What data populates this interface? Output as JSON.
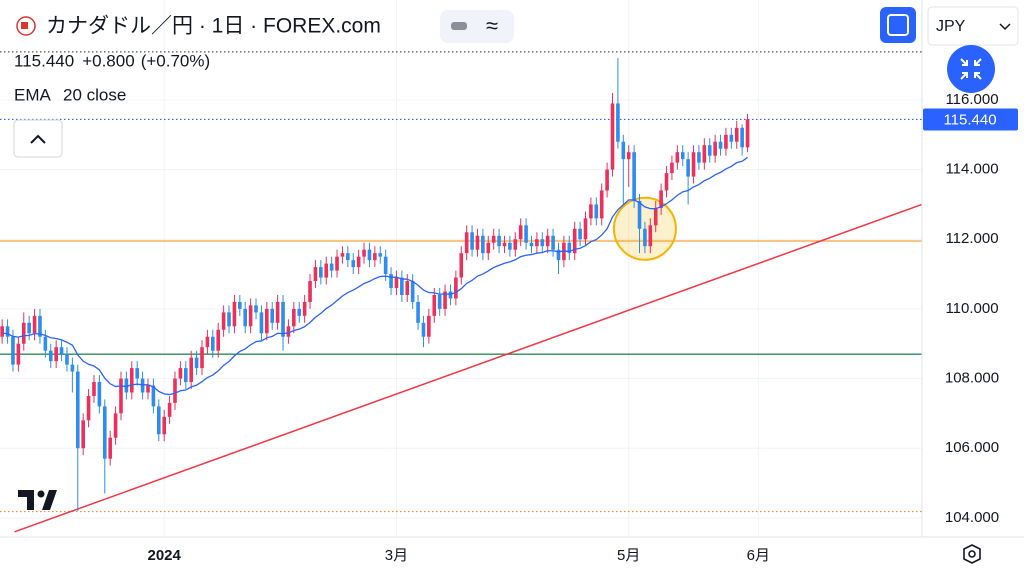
{
  "chart_data": {
    "type": "candlestick",
    "title": "カナダドル／円 · 1日 · FOREX.com",
    "last_price": {
      "value": 115.44,
      "label": "115.440"
    },
    "change": {
      "value": 0.8,
      "label": "+0.800"
    },
    "change_percent": {
      "value": 0.7,
      "label": "(+0.70%)"
    },
    "currency": "JPY",
    "candles": {
      "up_color": "#ec2f5b",
      "down_color": "#2d8cf0",
      "open": [
        109.2,
        109.5,
        109.2,
        108.4,
        109.0,
        109.6,
        109.3,
        109.8,
        109.2,
        108.8,
        108.5,
        108.9,
        108.7,
        108.4,
        108.2,
        106.0,
        106.8,
        107.5,
        107.9,
        107.2,
        105.7,
        106.3,
        107.0,
        108.0,
        107.6,
        108.3,
        108.0,
        107.6,
        107.8,
        107.2,
        106.4,
        106.9,
        107.3,
        108.0,
        108.3,
        107.9,
        108.6,
        108.3,
        108.9,
        109.2,
        108.8,
        109.4,
        109.9,
        109.5,
        110.2,
        110.0,
        109.5,
        110.1,
        109.9,
        109.3,
        110.0,
        109.6,
        110.2,
        109.2,
        109.5,
        110.0,
        109.8,
        110.2,
        110.8,
        111.2,
        110.9,
        111.3,
        111.1,
        111.5,
        111.6,
        111.4,
        111.2,
        111.5,
        111.7,
        111.4,
        111.6,
        111.5,
        111.0,
        110.6,
        110.9,
        110.4,
        110.8,
        110.2,
        109.6,
        109.2,
        109.8,
        110.4,
        110.0,
        110.5,
        110.3,
        110.9,
        111.6,
        112.2,
        111.7,
        112.1,
        111.6,
        111.9,
        112.1,
        111.8,
        111.9,
        111.7,
        112.0,
        112.4,
        111.9,
        111.8,
        112.0,
        111.8,
        112.1,
        111.7,
        111.4,
        111.9,
        111.6,
        112.3,
        112.0,
        112.6,
        113.0,
        112.6,
        113.4,
        114.0,
        115.9,
        114.8,
        114.3,
        114.5,
        113.1,
        112.3,
        111.8,
        112.4,
        112.9,
        113.4,
        113.9,
        114.2,
        114.5,
        114.3,
        113.8,
        114.5,
        114.2,
        114.7,
        114.4,
        114.8,
        114.6,
        115.0,
        114.8,
        115.2,
        114.64
      ],
      "high": [
        109.7,
        109.7,
        109.4,
        109.2,
        109.9,
        109.8,
        110.0,
        110.0,
        109.4,
        109.0,
        109.1,
        109.1,
        108.9,
        108.6,
        108.4,
        107.0,
        107.7,
        108.1,
        108.1,
        107.4,
        106.5,
        107.2,
        108.2,
        108.2,
        108.5,
        108.5,
        108.2,
        108.0,
        108.0,
        107.4,
        107.1,
        107.5,
        108.2,
        108.5,
        108.5,
        108.8,
        108.8,
        109.1,
        109.4,
        109.4,
        109.6,
        110.1,
        110.1,
        110.4,
        110.4,
        110.2,
        110.3,
        110.3,
        110.1,
        110.2,
        110.2,
        110.4,
        110.4,
        109.7,
        110.2,
        110.2,
        110.4,
        111.0,
        111.4,
        111.4,
        111.5,
        111.5,
        111.7,
        111.8,
        111.8,
        111.6,
        111.7,
        111.9,
        111.9,
        111.8,
        111.8,
        111.7,
        111.2,
        111.1,
        111.1,
        111.0,
        111.0,
        110.4,
        109.8,
        110.0,
        110.6,
        110.6,
        110.7,
        110.7,
        111.1,
        111.8,
        112.4,
        112.4,
        112.3,
        112.3,
        112.1,
        112.3,
        112.3,
        112.1,
        112.1,
        112.2,
        112.6,
        112.6,
        112.1,
        112.2,
        112.2,
        112.3,
        112.3,
        111.9,
        112.1,
        112.1,
        112.5,
        112.5,
        112.8,
        113.2,
        113.2,
        113.6,
        114.2,
        116.2,
        117.2,
        115.0,
        114.7,
        114.7,
        113.3,
        112.5,
        112.6,
        113.1,
        113.6,
        114.1,
        114.4,
        114.7,
        114.7,
        114.5,
        114.7,
        114.7,
        114.9,
        114.9,
        115.0,
        115.0,
        115.2,
        115.2,
        115.4,
        115.3,
        115.6
      ],
      "low": [
        109.0,
        109.0,
        108.2,
        108.2,
        108.8,
        109.1,
        109.1,
        109.0,
        108.6,
        108.3,
        108.3,
        108.5,
        108.2,
        107.6,
        104.2,
        105.8,
        106.6,
        107.3,
        107.0,
        104.7,
        105.5,
        106.1,
        106.8,
        107.4,
        107.4,
        107.8,
        107.4,
        107.4,
        107.0,
        106.2,
        106.2,
        106.7,
        107.1,
        107.8,
        107.7,
        107.7,
        108.1,
        108.1,
        108.7,
        108.6,
        108.6,
        109.2,
        109.3,
        109.3,
        109.8,
        109.3,
        109.3,
        109.7,
        109.1,
        109.1,
        109.4,
        109.4,
        108.8,
        109.0,
        109.3,
        109.6,
        109.6,
        110.0,
        110.6,
        110.7,
        110.7,
        110.9,
        110.9,
        111.3,
        111.2,
        111.0,
        111.0,
        111.3,
        111.2,
        111.2,
        111.3,
        110.8,
        110.4,
        110.4,
        110.2,
        110.2,
        110.0,
        109.4,
        108.9,
        109.0,
        109.6,
        109.8,
        109.8,
        110.1,
        110.1,
        110.7,
        111.4,
        111.5,
        111.5,
        111.4,
        111.4,
        111.7,
        111.6,
        111.6,
        111.5,
        111.5,
        111.8,
        111.7,
        111.6,
        111.6,
        111.6,
        111.6,
        111.5,
        111.0,
        111.2,
        111.4,
        111.4,
        111.8,
        111.8,
        112.4,
        112.4,
        112.4,
        113.2,
        113.8,
        114.6,
        113.0,
        113.5,
        112.9,
        111.6,
        111.6,
        111.6,
        112.2,
        112.7,
        113.2,
        113.7,
        114.0,
        114.1,
        113.0,
        113.6,
        114.0,
        114.0,
        114.2,
        114.2,
        114.4,
        114.4,
        114.6,
        114.6,
        114.4,
        114.5
      ],
      "close": [
        109.5,
        109.2,
        108.4,
        109.0,
        109.6,
        109.3,
        109.8,
        109.2,
        108.8,
        108.5,
        108.9,
        108.7,
        108.4,
        108.2,
        106.0,
        106.8,
        107.5,
        107.9,
        107.2,
        105.7,
        106.3,
        107.0,
        108.0,
        107.6,
        108.3,
        108.0,
        107.6,
        107.8,
        107.2,
        106.4,
        106.9,
        107.3,
        108.0,
        108.3,
        107.9,
        108.6,
        108.3,
        108.9,
        109.2,
        108.8,
        109.4,
        109.9,
        109.5,
        110.2,
        110.0,
        109.5,
        110.1,
        109.9,
        109.3,
        110.0,
        109.6,
        110.2,
        109.2,
        109.5,
        110.0,
        109.8,
        110.2,
        110.8,
        111.2,
        110.9,
        111.3,
        111.1,
        111.5,
        111.6,
        111.4,
        111.2,
        111.5,
        111.7,
        111.4,
        111.6,
        111.5,
        111.0,
        110.6,
        110.9,
        110.4,
        110.8,
        110.2,
        109.6,
        109.2,
        109.8,
        110.4,
        110.0,
        110.5,
        110.3,
        110.9,
        111.6,
        112.2,
        111.7,
        112.1,
        111.6,
        111.9,
        112.1,
        111.8,
        111.9,
        111.7,
        112.0,
        112.4,
        111.9,
        111.8,
        112.0,
        111.8,
        112.1,
        111.7,
        111.4,
        111.9,
        111.6,
        112.3,
        112.0,
        112.6,
        113.0,
        112.6,
        113.4,
        114.0,
        115.9,
        114.8,
        114.3,
        114.5,
        113.1,
        112.3,
        111.8,
        112.4,
        112.9,
        113.4,
        113.9,
        114.2,
        114.5,
        114.3,
        113.8,
        114.5,
        114.2,
        114.7,
        114.4,
        114.8,
        114.6,
        115.0,
        114.8,
        115.2,
        114.64,
        115.44
      ]
    },
    "series": [
      {
        "name": "EMA",
        "params": "20 close",
        "color": "#2962ff",
        "values": [
          109.3,
          109.29,
          109.21,
          109.19,
          109.23,
          109.24,
          109.29,
          109.28,
          109.24,
          109.17,
          109.15,
          109.11,
          109.04,
          108.96,
          108.68,
          108.5,
          108.41,
          108.36,
          108.25,
          108.01,
          107.85,
          107.77,
          107.79,
          107.77,
          107.82,
          107.84,
          107.82,
          107.82,
          107.76,
          107.63,
          107.56,
          107.54,
          107.58,
          107.65,
          107.67,
          107.76,
          107.81,
          107.91,
          108.03,
          108.1,
          108.22,
          108.38,
          108.49,
          108.65,
          108.78,
          108.85,
          108.97,
          109.06,
          109.08,
          109.17,
          109.21,
          109.3,
          109.29,
          109.31,
          109.38,
          109.42,
          109.49,
          109.61,
          109.76,
          109.87,
          110.01,
          110.11,
          110.24,
          110.37,
          110.47,
          110.54,
          110.63,
          110.73,
          110.79,
          110.87,
          110.93,
          110.94,
          110.91,
          110.91,
          110.86,
          110.85,
          110.79,
          110.68,
          110.54,
          110.47,
          110.46,
          110.42,
          110.43,
          110.42,
          110.47,
          110.58,
          110.73,
          110.82,
          110.94,
          111.0,
          111.09,
          111.19,
          111.25,
          111.31,
          111.35,
          111.41,
          111.5,
          111.54,
          111.56,
          111.6,
          111.62,
          111.67,
          111.67,
          111.64,
          111.66,
          111.65,
          111.71,
          111.74,
          111.82,
          111.93,
          111.99,
          112.12,
          112.3,
          112.64,
          112.85,
          112.99,
          113.13,
          113.13,
          113.05,
          112.93,
          112.88,
          112.88,
          112.93,
          113.02,
          113.13,
          113.26,
          113.36,
          113.4,
          113.5,
          113.57,
          113.68,
          113.75,
          113.85,
          113.92,
          114.02,
          114.09,
          114.2,
          114.24,
          114.35
        ]
      }
    ],
    "hlines": [
      {
        "value": 117.38,
        "color": "#555555",
        "style": "dotted"
      },
      {
        "value": 111.95,
        "color": "#f5a03c",
        "style": "solid"
      },
      {
        "value": 108.7,
        "color": "#2e8b57",
        "style": "solid"
      },
      {
        "value": 104.18,
        "color": "#f08c2e",
        "style": "dotted"
      }
    ],
    "trendline": {
      "x": [
        2.3,
        170.3
      ],
      "y": [
        103.6,
        113.0
      ],
      "color": "#f23645"
    },
    "highlight": {
      "x": 119,
      "y": 112.3,
      "color": "#f5b400"
    },
    "xlim": [
      -0.4,
      170.3
    ],
    "ylim": [
      103.45,
      118.87
    ],
    "xticks": [
      {
        "value": 30,
        "label": "2024"
      },
      {
        "value": 73,
        "label": "3月"
      },
      {
        "value": 116,
        "label": "5月"
      },
      {
        "value": 140,
        "label": "6月"
      }
    ],
    "yticks": [
      {
        "value": 104,
        "label": "104.000"
      },
      {
        "value": 106,
        "label": "106.000"
      },
      {
        "value": 108,
        "label": "108.000"
      },
      {
        "value": 110,
        "label": "110.000"
      },
      {
        "value": 112,
        "label": "112.000"
      },
      {
        "value": 114,
        "label": "114.000"
      },
      {
        "value": 116,
        "label": "116.000"
      }
    ],
    "grid": true
  }
}
